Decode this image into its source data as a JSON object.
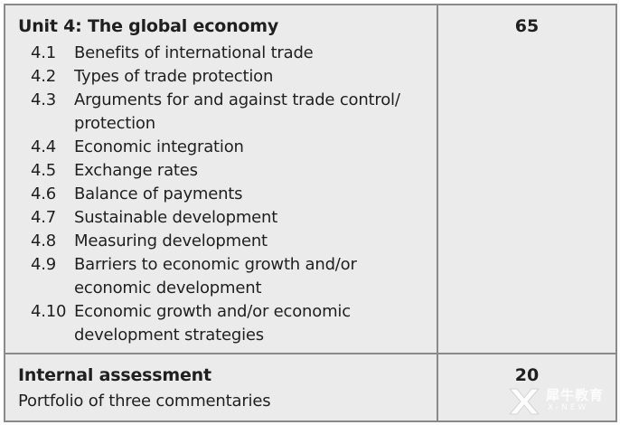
{
  "unit": {
    "title": "Unit 4: The global economy",
    "hours": "65",
    "topics": [
      {
        "num": "4.1",
        "text": "Benefits of international trade"
      },
      {
        "num": "4.2",
        "text": "Types of trade protection"
      },
      {
        "num": "4.3",
        "text": "Arguments for and against trade control/ protection"
      },
      {
        "num": "4.4",
        "text": "Economic integration"
      },
      {
        "num": "4.5",
        "text": "Exchange rates"
      },
      {
        "num": "4.6",
        "text": "Balance of payments"
      },
      {
        "num": "4.7",
        "text": "Sustainable development"
      },
      {
        "num": "4.8",
        "text": "Measuring development"
      },
      {
        "num": "4.9",
        "text": "Barriers to economic growth and/or economic development"
      },
      {
        "num": "4.10",
        "text": "Economic growth and/or economic development strategies"
      }
    ]
  },
  "internal_assessment": {
    "title": "Internal assessment",
    "hours": "20",
    "description": "Portfolio of three commentaries"
  },
  "watermark": {
    "text_cn": "犀牛教育",
    "text_en": "X-NEW",
    "icon": "x-logo-icon"
  }
}
